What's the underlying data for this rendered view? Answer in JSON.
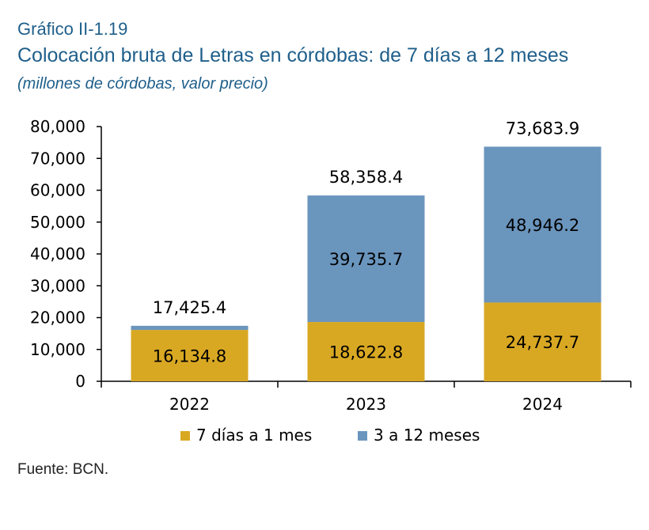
{
  "header": {
    "kicker": "Gráfico II-1.19",
    "title": "Colocación bruta de Letras en córdobas: de 7 días a 12 meses",
    "subtitle": "(millones de córdobas, valor precio)"
  },
  "footer": {
    "source": "Fuente: BCN."
  },
  "chart_data": {
    "type": "bar",
    "stacked": true,
    "title": "Colocación bruta de Letras en córdobas: de 7 días a 12 meses",
    "subtitle": "(millones de córdobas, valor precio)",
    "categories": [
      "2022",
      "2023",
      "2024"
    ],
    "series": [
      {
        "name": "7 días a 1 mes",
        "values": [
          16134.8,
          18622.8,
          24737.7
        ],
        "color": "#d9a823",
        "labels": [
          "16,134.8",
          "18,622.8",
          "24,737.7"
        ]
      },
      {
        "name": "3 a 12 meses",
        "values": [
          1290.6,
          39735.7,
          48946.2
        ],
        "color": "#6a95bd",
        "labels": [
          "",
          "39,735.7",
          "48,946.2"
        ]
      }
    ],
    "totals": [
      17425.4,
      58358.4,
      73683.9
    ],
    "total_labels": [
      "17,425.4",
      "58,358.4",
      "73,683.9"
    ],
    "ylim": [
      0,
      80000
    ],
    "yticks": [
      0,
      10000,
      20000,
      30000,
      40000,
      50000,
      60000,
      70000,
      80000
    ],
    "ytick_labels": [
      "0",
      "10,000",
      "20,000",
      "30,000",
      "40,000",
      "50,000",
      "60,000",
      "70,000",
      "80,000"
    ],
    "grid": false,
    "legend_position": "bottom"
  }
}
